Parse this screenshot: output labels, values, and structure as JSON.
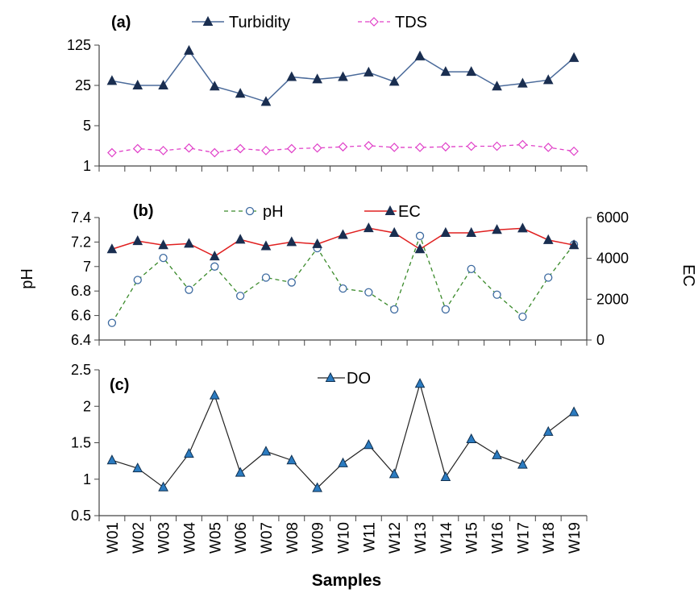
{
  "colors": {
    "turbidity": "#4a6a9a",
    "tds": "#e040c8",
    "ph": "#3a8a2a",
    "ec": "#e02020",
    "do": "#222222",
    "marker_blue": "#1f4e8c"
  },
  "icons": {
    "triangle": "filled-triangle-marker",
    "diamond": "hollow-diamond-marker",
    "circle": "hollow-circle-marker"
  },
  "chart_data": [
    {
      "panel": "(a)",
      "type": "line",
      "yscale": "log",
      "categories": [
        "W01",
        "W02",
        "W03",
        "W04",
        "W05",
        "W06",
        "W07",
        "W08",
        "W09",
        "W10",
        "W11",
        "W12",
        "W13",
        "W14",
        "W15",
        "W16",
        "W17",
        "W18",
        "W19"
      ],
      "ylim": [
        1,
        125
      ],
      "yticks": [
        "1",
        "5",
        "25",
        "125"
      ],
      "grid": false,
      "legend": "top",
      "series": [
        {
          "name": "Turbidity",
          "values": [
            30,
            25,
            25,
            100,
            24,
            18,
            13,
            35,
            32,
            35,
            42,
            29,
            80,
            43,
            43,
            24,
            27,
            31,
            75
          ]
        },
        {
          "name": "TDS",
          "values": [
            1.7,
            2.0,
            1.85,
            2.05,
            1.7,
            2.0,
            1.85,
            2.0,
            2.05,
            2.15,
            2.25,
            2.1,
            2.1,
            2.15,
            2.2,
            2.2,
            2.35,
            2.1,
            1.8
          ]
        }
      ]
    },
    {
      "panel": "(b)",
      "type": "line",
      "categories": [
        "W01",
        "W02",
        "W03",
        "W04",
        "W05",
        "W06",
        "W07",
        "W08",
        "W09",
        "W10",
        "W11",
        "W12",
        "W13",
        "W14",
        "W15",
        "W16",
        "W17",
        "W18",
        "W19"
      ],
      "ylabel": "pH",
      "ylim": [
        6.4,
        7.4
      ],
      "yticks": [
        "6.4",
        "6.6",
        "6.8",
        "7",
        "7.2",
        "7.4"
      ],
      "y2label": "EC",
      "y2lim": [
        0,
        6000
      ],
      "y2ticks": [
        "0",
        "2000",
        "4000",
        "6000"
      ],
      "grid": false,
      "legend": "top",
      "series": [
        {
          "name": "pH",
          "axis": "left",
          "values": [
            6.54,
            6.89,
            7.07,
            6.81,
            7.0,
            6.76,
            6.91,
            6.87,
            7.15,
            6.82,
            6.79,
            6.65,
            7.25,
            6.65,
            6.98,
            6.77,
            6.59,
            6.91,
            7.18
          ]
        },
        {
          "name": "EC",
          "axis": "right",
          "values": [
            4450,
            4850,
            4650,
            4720,
            4100,
            4920,
            4600,
            4800,
            4700,
            5150,
            5480,
            5250,
            4450,
            5250,
            5250,
            5400,
            5470,
            4900,
            4650
          ]
        }
      ]
    },
    {
      "panel": "(c)",
      "type": "line",
      "categories": [
        "W01",
        "W02",
        "W03",
        "W04",
        "W05",
        "W06",
        "W07",
        "W08",
        "W09",
        "W10",
        "W11",
        "W12",
        "W13",
        "W14",
        "W15",
        "W16",
        "W17",
        "W18",
        "W19"
      ],
      "xlabel": "Samples",
      "ylim": [
        0.5,
        2.5
      ],
      "yticks": [
        "0.5",
        "1",
        "1.5",
        "2",
        "2.5"
      ],
      "grid": false,
      "legend": "top",
      "series": [
        {
          "name": "DO",
          "values": [
            1.26,
            1.15,
            0.89,
            1.35,
            2.15,
            1.09,
            1.38,
            1.26,
            0.88,
            1.22,
            1.47,
            1.07,
            2.31,
            1.03,
            1.55,
            1.33,
            1.2,
            1.65,
            1.92
          ]
        }
      ]
    }
  ]
}
